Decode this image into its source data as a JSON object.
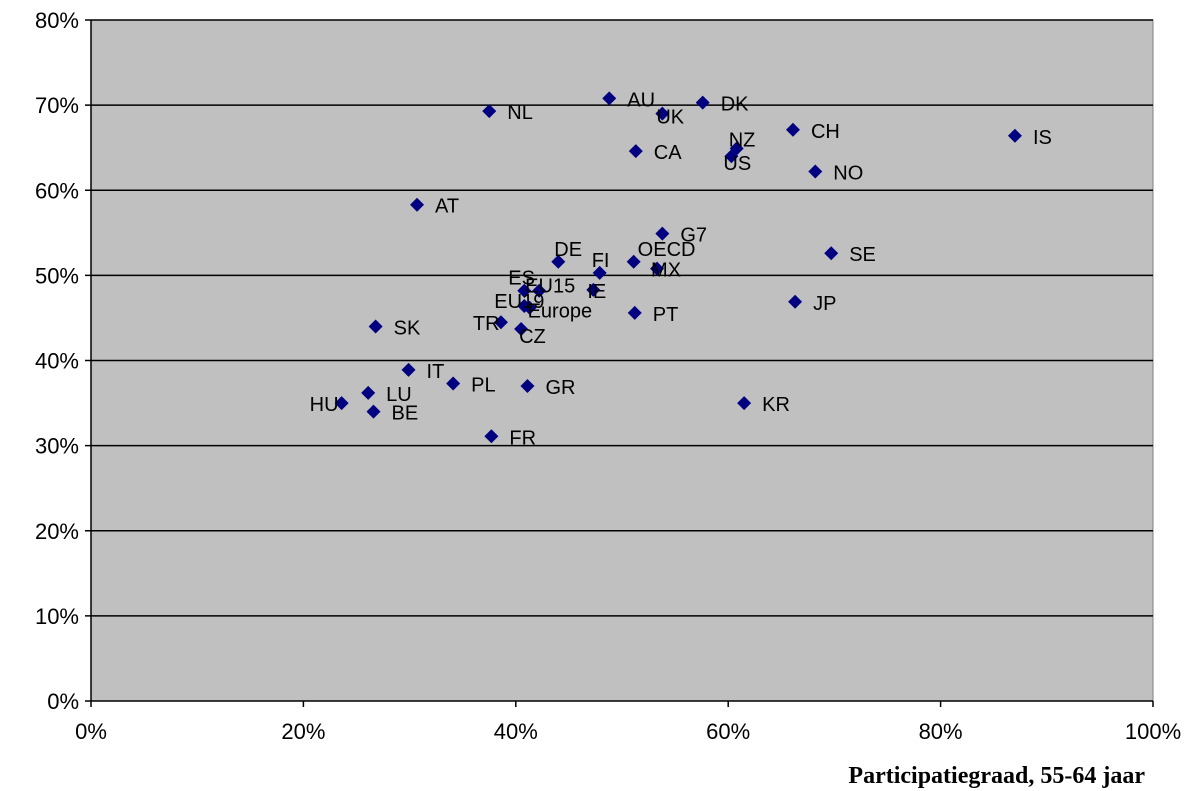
{
  "chart_data": {
    "type": "scatter",
    "title": "",
    "xlabel": "Participatiegraad, 55-64 jaar",
    "ylabel": "",
    "xlim": [
      0,
      100
    ],
    "ylim": [
      0,
      80
    ],
    "x_ticks": [
      0,
      20,
      40,
      60,
      80,
      100
    ],
    "y_ticks": [
      0,
      10,
      20,
      30,
      40,
      50,
      60,
      70,
      80
    ],
    "x_tick_labels": [
      "0%",
      "20%",
      "40%",
      "60%",
      "80%",
      "100%"
    ],
    "y_tick_labels": [
      "0%",
      "10%",
      "20%",
      "30%",
      "40%",
      "50%",
      "60%",
      "70%",
      "80%"
    ],
    "grid": "horizontal",
    "legend": "none",
    "colors": {
      "plot_bg": "#c0c0c0",
      "marker": "#000080",
      "grid": "#000000"
    },
    "marker_shape": "diamond",
    "points": [
      {
        "label": "AU",
        "x": 48.8,
        "y": 70.8
      },
      {
        "label": "DK",
        "x": 57.6,
        "y": 70.3
      },
      {
        "label": "NL",
        "x": 37.5,
        "y": 69.3
      },
      {
        "label": "UK",
        "x": 53.8,
        "y": 69.0
      },
      {
        "label": "CH",
        "x": 66.1,
        "y": 67.1
      },
      {
        "label": "IS",
        "x": 87.0,
        "y": 66.4
      },
      {
        "label": "NZ",
        "x": 60.8,
        "y": 64.9
      },
      {
        "label": "CA",
        "x": 51.3,
        "y": 64.6
      },
      {
        "label": "US",
        "x": 60.3,
        "y": 64.0
      },
      {
        "label": "NO",
        "x": 68.2,
        "y": 62.2
      },
      {
        "label": "AT",
        "x": 30.7,
        "y": 58.3
      },
      {
        "label": "G7",
        "x": 53.8,
        "y": 54.9
      },
      {
        "label": "SE",
        "x": 69.7,
        "y": 52.6
      },
      {
        "label": "DE",
        "x": 44.0,
        "y": 51.6
      },
      {
        "label": "OECD",
        "x": 51.1,
        "y": 51.6
      },
      {
        "label": "MX",
        "x": 53.3,
        "y": 50.8
      },
      {
        "label": "FI",
        "x": 47.9,
        "y": 50.3
      },
      {
        "label": "ES",
        "x": 40.8,
        "y": 48.2
      },
      {
        "label": "EU15",
        "x": 42.2,
        "y": 48.2
      },
      {
        "label": "IE",
        "x": 47.3,
        "y": 48.3
      },
      {
        "label": "JP",
        "x": 66.3,
        "y": 46.9
      },
      {
        "label": "EU19",
        "x": 40.8,
        "y": 46.4
      },
      {
        "label": "Europe",
        "x": 41.3,
        "y": 46.2
      },
      {
        "label": "PT",
        "x": 51.2,
        "y": 45.6
      },
      {
        "label": "TR",
        "x": 38.6,
        "y": 44.5
      },
      {
        "label": "SK",
        "x": 26.8,
        "y": 44.0
      },
      {
        "label": "CZ",
        "x": 40.5,
        "y": 43.7
      },
      {
        "label": "IT",
        "x": 29.9,
        "y": 38.9
      },
      {
        "label": "PL",
        "x": 34.1,
        "y": 37.3
      },
      {
        "label": "GR",
        "x": 41.1,
        "y": 37.0
      },
      {
        "label": "LU",
        "x": 26.1,
        "y": 36.2
      },
      {
        "label": "HU",
        "x": 23.6,
        "y": 35.0
      },
      {
        "label": "KR",
        "x": 61.5,
        "y": 35.0
      },
      {
        "label": "BE",
        "x": 26.6,
        "y": 34.0
      },
      {
        "label": "FR",
        "x": 37.7,
        "y": 31.1
      }
    ]
  }
}
